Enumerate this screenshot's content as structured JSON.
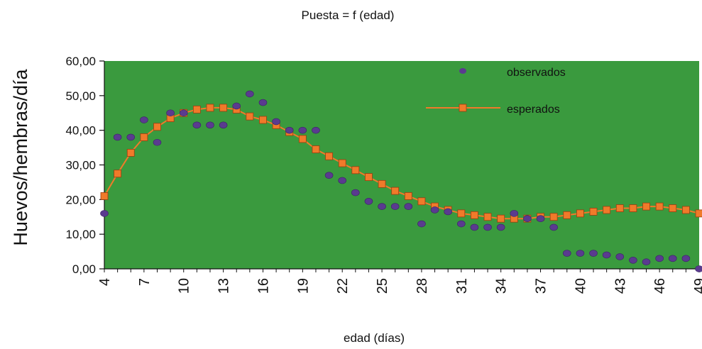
{
  "chart_data": {
    "type": "scatter",
    "title": "Puesta = f (edad)",
    "xlabel": "edad (días)",
    "ylabel": "Huevos/hembras/día",
    "xlim": [
      4,
      49
    ],
    "ylim": [
      0,
      60
    ],
    "y_ticks": [
      "0,00",
      "10,00",
      "20,00",
      "30,00",
      "40,00",
      "50,00",
      "60,00"
    ],
    "x_ticks": [
      "4",
      "7",
      "10",
      "13",
      "16",
      "19",
      "22",
      "25",
      "28",
      "31",
      "34",
      "37",
      "40",
      "43",
      "46",
      "49"
    ],
    "grid": false,
    "legend_position": "top-right",
    "colors": {
      "plot_background": "#3a9a3e",
      "observados": "#5a3b8f",
      "esperados": "#f07a2a"
    },
    "series": [
      {
        "name": "observados",
        "kind": "points",
        "x": [
          4,
          5,
          6,
          7,
          8,
          9,
          10,
          11,
          12,
          13,
          14,
          15,
          16,
          17,
          18,
          19,
          20,
          21,
          22,
          23,
          24,
          25,
          26,
          27,
          28,
          29,
          30,
          31,
          32,
          33,
          34,
          35,
          36,
          37,
          38,
          39,
          40,
          41,
          42,
          43,
          44,
          45,
          46,
          47,
          48,
          49
        ],
        "y": [
          16,
          38,
          38,
          43,
          36.5,
          45,
          45,
          41.5,
          41.5,
          41.5,
          47,
          50.5,
          48,
          42.5,
          40,
          40,
          40,
          27,
          25.5,
          22,
          19.5,
          18,
          18,
          18,
          13,
          17,
          16.5,
          13,
          12,
          12,
          12,
          16,
          14.5,
          14.5,
          12,
          4.5,
          4.5,
          4.5,
          4,
          3.5,
          2.5,
          2,
          3,
          3,
          3,
          0
        ]
      },
      {
        "name": "esperados",
        "kind": "line-markers",
        "x": [
          4,
          5,
          6,
          7,
          8,
          9,
          10,
          11,
          12,
          13,
          14,
          15,
          16,
          17,
          18,
          19,
          20,
          21,
          22,
          23,
          24,
          25,
          26,
          27,
          28,
          29,
          30,
          31,
          32,
          33,
          34,
          35,
          36,
          37,
          38,
          39,
          40,
          41,
          42,
          43,
          44,
          45,
          46,
          47,
          48,
          49
        ],
        "y": [
          21,
          27.5,
          33.5,
          38,
          41,
          43.5,
          45,
          46,
          46.5,
          46.5,
          46,
          44,
          43,
          41.5,
          39.5,
          37.5,
          34.5,
          32.5,
          30.5,
          28.5,
          26.5,
          24.5,
          22.5,
          21,
          19.5,
          18,
          17,
          16,
          15.5,
          15,
          14.5,
          14.5,
          14.5,
          15,
          15,
          15.5,
          16,
          16.5,
          17,
          17.5,
          17.5,
          18,
          18,
          17.5,
          17,
          16
        ]
      }
    ]
  }
}
